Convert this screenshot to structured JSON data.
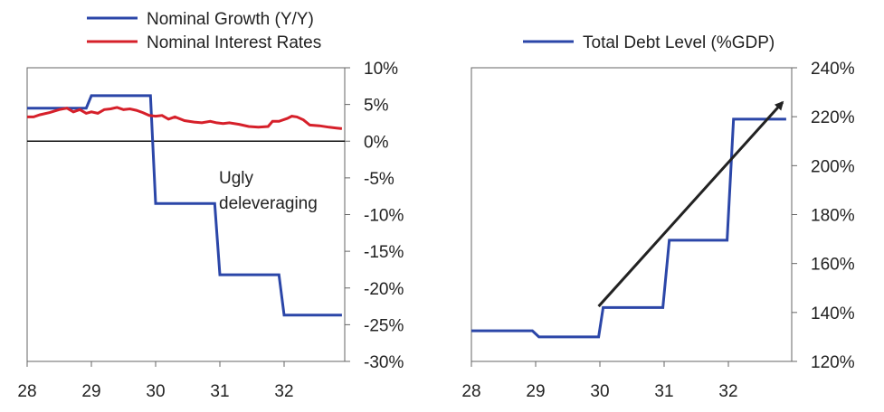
{
  "chart_data": [
    {
      "type": "line",
      "x_ticks": [
        "28",
        "29",
        "30",
        "31",
        "32"
      ],
      "x_range": [
        28,
        32.9
      ],
      "y_axis": "right",
      "ylim": [
        -30,
        10
      ],
      "y_ticks": [
        "10%",
        "5%",
        "0%",
        "-5%",
        "-10%",
        "-15%",
        "-20%",
        "-25%",
        "-30%"
      ],
      "y_tick_values": [
        10,
        5,
        0,
        -5,
        -10,
        -15,
        -20,
        -25,
        -30
      ],
      "zero_line": true,
      "annotation": [
        "Ugly",
        "deleveraging"
      ],
      "series": [
        {
          "name": "Nominal Growth (Y/Y)",
          "color": "#2b46a8",
          "points": [
            [
              28.0,
              4.5
            ],
            [
              28.92,
              4.5
            ],
            [
              29.0,
              6.2
            ],
            [
              29.92,
              6.2
            ],
            [
              30.0,
              -8.5
            ],
            [
              30.92,
              -8.5
            ],
            [
              31.0,
              -18.2
            ],
            [
              31.92,
              -18.2
            ],
            [
              32.0,
              -23.7
            ],
            [
              32.9,
              -23.7
            ]
          ]
        },
        {
          "name": "Nominal Interest Rates",
          "color": "#d6202a",
          "points": [
            [
              28.0,
              3.3
            ],
            [
              28.1,
              3.3
            ],
            [
              28.2,
              3.6
            ],
            [
              28.35,
              3.9
            ],
            [
              28.5,
              4.3
            ],
            [
              28.62,
              4.5
            ],
            [
              28.72,
              4.0
            ],
            [
              28.82,
              4.3
            ],
            [
              28.92,
              3.8
            ],
            [
              29.0,
              4.0
            ],
            [
              29.1,
              3.8
            ],
            [
              29.2,
              4.3
            ],
            [
              29.3,
              4.4
            ],
            [
              29.4,
              4.6
            ],
            [
              29.5,
              4.3
            ],
            [
              29.6,
              4.4
            ],
            [
              29.7,
              4.2
            ],
            [
              29.8,
              3.9
            ],
            [
              29.9,
              3.5
            ],
            [
              30.0,
              3.4
            ],
            [
              30.1,
              3.5
            ],
            [
              30.2,
              3.0
            ],
            [
              30.3,
              3.3
            ],
            [
              30.45,
              2.8
            ],
            [
              30.6,
              2.6
            ],
            [
              30.72,
              2.5
            ],
            [
              30.85,
              2.7
            ],
            [
              30.95,
              2.5
            ],
            [
              31.05,
              2.4
            ],
            [
              31.15,
              2.5
            ],
            [
              31.3,
              2.3
            ],
            [
              31.45,
              2.0
            ],
            [
              31.6,
              1.9
            ],
            [
              31.75,
              2.0
            ],
            [
              31.82,
              2.7
            ],
            [
              31.92,
              2.7
            ],
            [
              32.05,
              3.1
            ],
            [
              32.12,
              3.4
            ],
            [
              32.2,
              3.3
            ],
            [
              32.3,
              2.9
            ],
            [
              32.4,
              2.2
            ],
            [
              32.55,
              2.1
            ],
            [
              32.7,
              1.9
            ],
            [
              32.8,
              1.8
            ],
            [
              32.9,
              1.7
            ]
          ]
        }
      ]
    },
    {
      "type": "line",
      "x_ticks": [
        "28",
        "29",
        "30",
        "31",
        "32"
      ],
      "x_range": [
        28,
        32.9
      ],
      "y_axis": "right",
      "ylim": [
        120,
        240
      ],
      "y_ticks": [
        "240%",
        "220%",
        "200%",
        "180%",
        "160%",
        "140%",
        "120%"
      ],
      "y_tick_values": [
        240,
        220,
        200,
        180,
        160,
        140,
        120
      ],
      "series": [
        {
          "name": "Total Debt Level (%GDP)",
          "color": "#2b46a8",
          "points": [
            [
              28.0,
              132.5
            ],
            [
              28.95,
              132.5
            ],
            [
              29.05,
              130
            ],
            [
              29.98,
              130
            ],
            [
              30.05,
              142
            ],
            [
              30.98,
              142
            ],
            [
              31.08,
              169.5
            ],
            [
              31.98,
              169.5
            ],
            [
              32.08,
              219
            ],
            [
              32.9,
              219
            ]
          ]
        }
      ],
      "arrow": {
        "from": [
          29.98,
          142.5
        ],
        "to": [
          32.9,
          227
        ],
        "color": "#222222"
      }
    }
  ]
}
